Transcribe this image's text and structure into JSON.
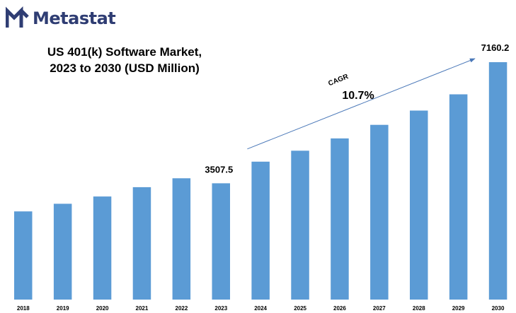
{
  "brand": {
    "name": "Metastat",
    "color": "#2f3d73"
  },
  "title": {
    "line1": "US 401(k) Software Market,",
    "line2": "2023 to 2030 (USD Million)"
  },
  "chart_data": {
    "type": "bar",
    "title": "US 401(k) Software Market, 2023 to 2030 (USD Million)",
    "categories": [
      "2018",
      "2019",
      "2020",
      "2021",
      "2022",
      "2023",
      "2024",
      "2025",
      "2026",
      "2027",
      "2028",
      "2029",
      "2030"
    ],
    "values": [
      2660,
      2890,
      3110,
      3390,
      3660,
      3507.5,
      4160,
      4490,
      4860,
      5270,
      5700,
      6190,
      7160.2
    ],
    "data_labels": {
      "2023": "3507.5",
      "2030": "7160.2"
    },
    "bar_color": "#5b9bd5",
    "ylim": [
      0,
      7160.2
    ],
    "grid": false,
    "legend": "none",
    "annotation": {
      "label": "CAGR",
      "value": "10.7%",
      "from": "2024",
      "to": "2030"
    }
  }
}
